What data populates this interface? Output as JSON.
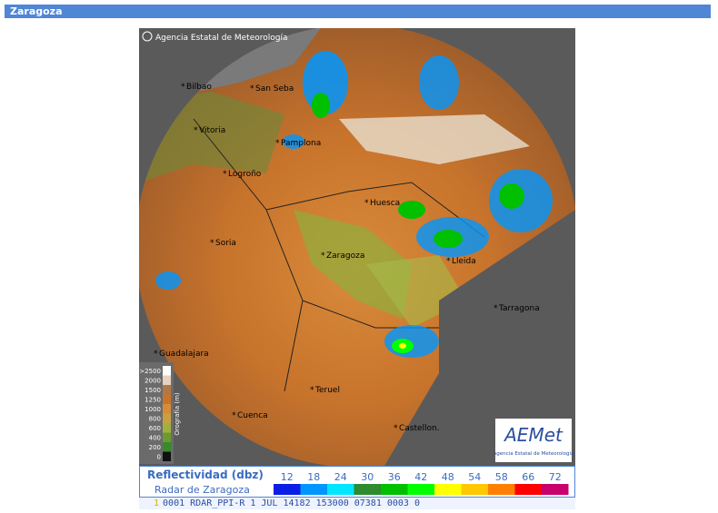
{
  "header": {
    "title": "Zaragoza"
  },
  "map": {
    "copyright": "Agencia Estatal de Meteorología",
    "cities": [
      {
        "label": "Bilbao"
      },
      {
        "label": "San Seba"
      },
      {
        "label": "Vitoria"
      },
      {
        "label": "Pamplona"
      },
      {
        "label": "Logroño"
      },
      {
        "label": "Soria"
      },
      {
        "label": "Zaragoza"
      },
      {
        "label": "Huesca"
      },
      {
        "label": "Lleida"
      },
      {
        "label": "Tarragona"
      },
      {
        "label": "Guadalajara"
      },
      {
        "label": "Teruel"
      },
      {
        "label": "Cuenca"
      },
      {
        "label": "Castellon."
      }
    ],
    "orography": {
      "title": "Orografía (m)",
      "levels": [
        ">2500",
        "2000",
        "1500",
        "1250",
        "1000",
        "800",
        "600",
        "400",
        "200",
        "0"
      ]
    },
    "logo": {
      "name": "AEMet",
      "subtitle": "Agencia Estatal de Meteorología"
    }
  },
  "legend": {
    "title": "Reflectividad (dbz)",
    "subtitle": "Radar de Zaragoza",
    "levels": [
      {
        "value": 12,
        "color": "#0a1ee6"
      },
      {
        "value": 18,
        "color": "#0096ff"
      },
      {
        "value": 24,
        "color": "#00e6ff"
      },
      {
        "value": 30,
        "color": "#2e8b2e"
      },
      {
        "value": 36,
        "color": "#00c000"
      },
      {
        "value": 42,
        "color": "#00ff00"
      },
      {
        "value": 48,
        "color": "#ffff00"
      },
      {
        "value": 54,
        "color": "#ffc800"
      },
      {
        "value": 58,
        "color": "#ff8000"
      },
      {
        "value": 66,
        "color": "#ff0000"
      },
      {
        "value": 72,
        "color": "#c8006e"
      }
    ]
  },
  "status": {
    "index": "1",
    "text": "0001 RDAR_PPI-R    1 JUL 14182 153000 07381 0003 0"
  }
}
